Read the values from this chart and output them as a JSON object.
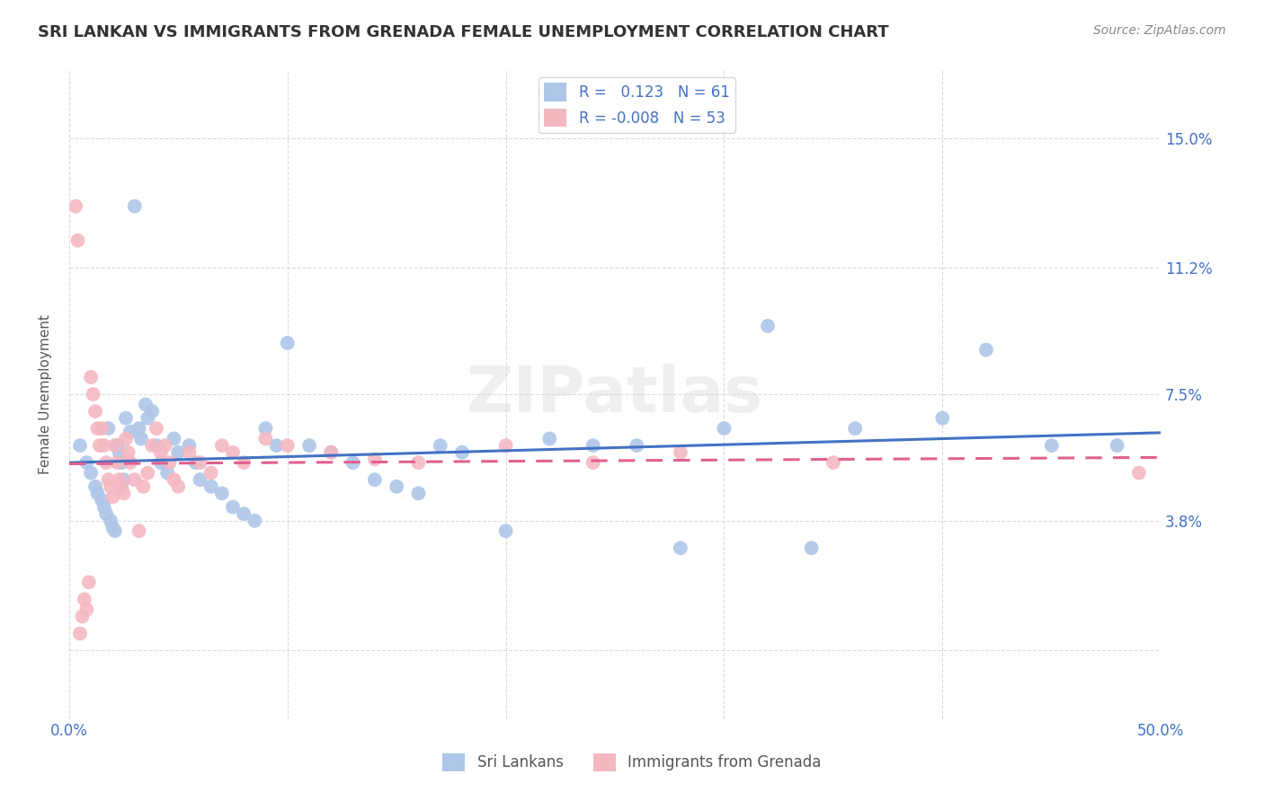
{
  "title": "SRI LANKAN VS IMMIGRANTS FROM GRENADA FEMALE UNEMPLOYMENT CORRELATION CHART",
  "source": "Source: ZipAtlas.com",
  "ylabel": "Female Unemployment",
  "xlim": [
    0.0,
    0.5
  ],
  "ylim": [
    -0.02,
    0.17
  ],
  "background_color": "#ffffff",
  "grid_color": "#cccccc",
  "sri_lankan_color": "#aec6e8",
  "grenada_color": "#f4b8c1",
  "line_sri_color": "#4472c4",
  "line_grenada_color": "#e06090",
  "R_sri": 0.123,
  "N_sri": 61,
  "R_grenada": -0.008,
  "N_grenada": 53,
  "sri_lankan_x": [
    0.005,
    0.008,
    0.01,
    0.012,
    0.013,
    0.015,
    0.016,
    0.017,
    0.018,
    0.019,
    0.02,
    0.021,
    0.022,
    0.023,
    0.024,
    0.025,
    0.026,
    0.028,
    0.03,
    0.032,
    0.033,
    0.035,
    0.036,
    0.038,
    0.04,
    0.042,
    0.045,
    0.048,
    0.05,
    0.055,
    0.058,
    0.06,
    0.065,
    0.07,
    0.075,
    0.08,
    0.085,
    0.09,
    0.095,
    0.1,
    0.11,
    0.12,
    0.13,
    0.14,
    0.15,
    0.16,
    0.17,
    0.18,
    0.2,
    0.22,
    0.24,
    0.26,
    0.28,
    0.3,
    0.32,
    0.34,
    0.36,
    0.4,
    0.42,
    0.45,
    0.48
  ],
  "sri_lankan_y": [
    0.06,
    0.055,
    0.052,
    0.048,
    0.046,
    0.044,
    0.042,
    0.04,
    0.065,
    0.038,
    0.036,
    0.035,
    0.06,
    0.058,
    0.055,
    0.05,
    0.068,
    0.064,
    0.13,
    0.065,
    0.062,
    0.072,
    0.068,
    0.07,
    0.06,
    0.055,
    0.052,
    0.062,
    0.058,
    0.06,
    0.055,
    0.05,
    0.048,
    0.046,
    0.042,
    0.04,
    0.038,
    0.065,
    0.06,
    0.09,
    0.06,
    0.058,
    0.055,
    0.05,
    0.048,
    0.046,
    0.06,
    0.058,
    0.035,
    0.062,
    0.06,
    0.06,
    0.03,
    0.065,
    0.095,
    0.03,
    0.065,
    0.068,
    0.088,
    0.06,
    0.06
  ],
  "grenada_x": [
    0.003,
    0.004,
    0.005,
    0.006,
    0.007,
    0.008,
    0.009,
    0.01,
    0.011,
    0.012,
    0.013,
    0.014,
    0.015,
    0.016,
    0.017,
    0.018,
    0.019,
    0.02,
    0.021,
    0.022,
    0.023,
    0.024,
    0.025,
    0.026,
    0.027,
    0.028,
    0.03,
    0.032,
    0.034,
    0.036,
    0.038,
    0.04,
    0.042,
    0.044,
    0.046,
    0.048,
    0.05,
    0.055,
    0.06,
    0.065,
    0.07,
    0.075,
    0.08,
    0.09,
    0.1,
    0.12,
    0.14,
    0.16,
    0.2,
    0.24,
    0.28,
    0.35,
    0.49
  ],
  "grenada_y": [
    0.13,
    0.12,
    0.005,
    0.01,
    0.015,
    0.012,
    0.02,
    0.08,
    0.075,
    0.07,
    0.065,
    0.06,
    0.065,
    0.06,
    0.055,
    0.05,
    0.048,
    0.045,
    0.06,
    0.055,
    0.05,
    0.048,
    0.046,
    0.062,
    0.058,
    0.055,
    0.05,
    0.035,
    0.048,
    0.052,
    0.06,
    0.065,
    0.058,
    0.06,
    0.055,
    0.05,
    0.048,
    0.058,
    0.055,
    0.052,
    0.06,
    0.058,
    0.055,
    0.062,
    0.06,
    0.058,
    0.056,
    0.055,
    0.06,
    0.055,
    0.058,
    0.055,
    0.052
  ]
}
